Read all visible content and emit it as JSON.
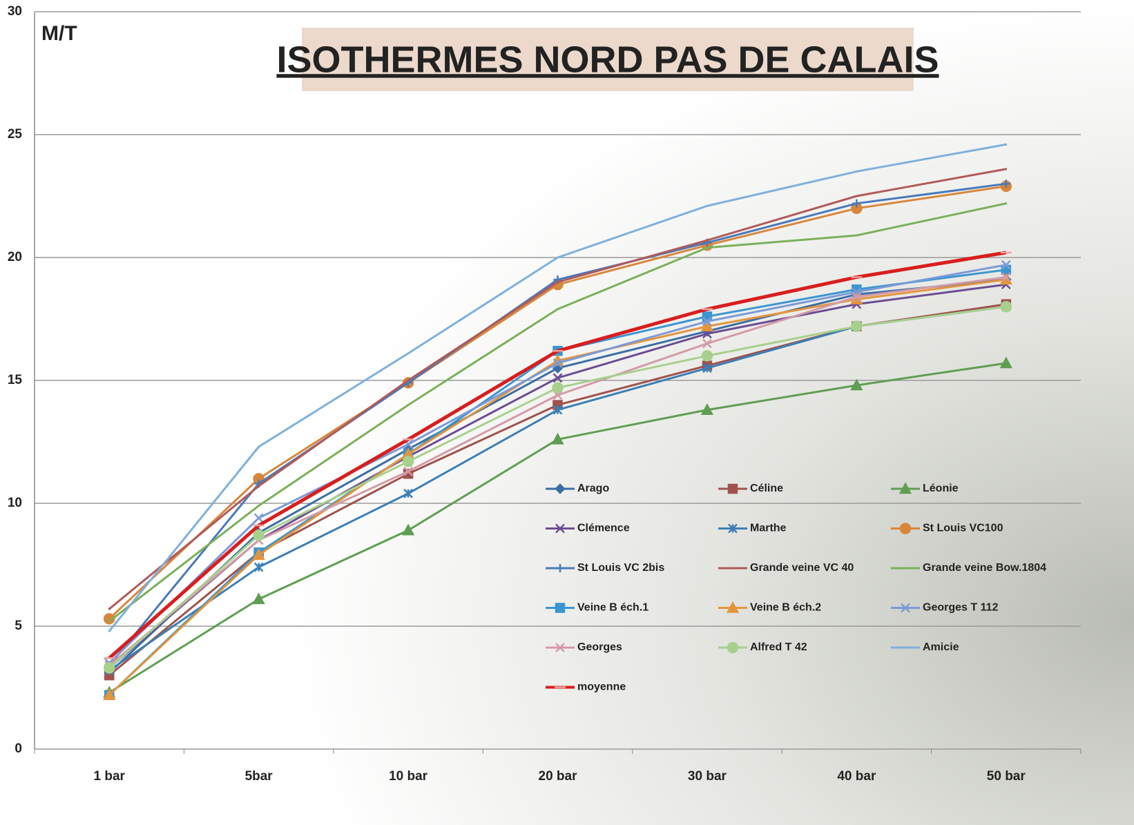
{
  "chart_data": {
    "type": "line",
    "title": "ISOTHERMES NORD PAS DE CALAIS",
    "y_label": "M/T",
    "categories": [
      "1 bar",
      "5bar",
      "10 bar",
      "20 bar",
      "30 bar",
      "40 bar",
      "50 bar"
    ],
    "ylim": [
      0,
      30
    ],
    "yticks": [
      0,
      5,
      10,
      15,
      20,
      25,
      30
    ],
    "grid": true,
    "series": [
      {
        "name": "Arago",
        "color": "#3a6ea5",
        "marker": "diamond",
        "values": [
          3.1,
          8.8,
          12.2,
          15.5,
          17.0,
          18.5,
          19.1
        ]
      },
      {
        "name": "Céline",
        "color": "#a0524d",
        "marker": "square",
        "values": [
          3.0,
          8.0,
          11.2,
          14.0,
          15.6,
          17.2,
          18.1
        ]
      },
      {
        "name": "Léonie",
        "color": "#5f9e52",
        "marker": "triangle",
        "values": [
          2.3,
          6.1,
          8.9,
          12.6,
          13.8,
          14.8,
          15.7
        ]
      },
      {
        "name": "Clémence",
        "color": "#6a4c93",
        "marker": "x",
        "values": [
          3.3,
          8.5,
          11.9,
          15.1,
          16.9,
          18.1,
          18.9
        ]
      },
      {
        "name": "Marthe",
        "color": "#3b7fb6",
        "marker": "star",
        "values": [
          3.2,
          7.4,
          10.4,
          13.8,
          15.5,
          17.2,
          18.0
        ]
      },
      {
        "name": "St Louis VC100",
        "color": "#d9863a",
        "marker": "circle",
        "values": [
          5.3,
          11.0,
          14.9,
          18.9,
          20.5,
          22.0,
          22.9
        ]
      },
      {
        "name": "St Louis VC 2bis",
        "color": "#4a79b9",
        "marker": "plus",
        "values": [
          3.4,
          10.8,
          14.9,
          19.1,
          20.6,
          22.2,
          23.0
        ]
      },
      {
        "name": "Grande veine VC 40",
        "color": "#b05a5a",
        "marker": "none",
        "values": [
          5.7,
          10.7,
          15.0,
          19.0,
          20.7,
          22.5,
          23.6
        ]
      },
      {
        "name": "Grande veine Bow.1804",
        "color": "#7ab05a",
        "marker": "none",
        "values": [
          5.2,
          9.9,
          14.0,
          17.9,
          20.4,
          20.9,
          22.2
        ]
      },
      {
        "name": "Veine B éch.1",
        "color": "#3a96d0",
        "marker": "square",
        "values": [
          2.2,
          8.0,
          12.0,
          16.2,
          17.6,
          18.7,
          19.5
        ]
      },
      {
        "name": "Veine B éch.2",
        "color": "#e3953c",
        "marker": "triangle",
        "values": [
          2.2,
          7.9,
          12.0,
          15.8,
          17.2,
          18.3,
          19.1
        ]
      },
      {
        "name": "Georges T 112",
        "color": "#7a9ad8",
        "marker": "x",
        "values": [
          3.5,
          9.4,
          12.4,
          15.7,
          17.4,
          18.6,
          19.7
        ]
      },
      {
        "name": "Georges",
        "color": "#d49aa8",
        "marker": "x",
        "values": [
          3.4,
          8.5,
          11.3,
          14.4,
          16.5,
          18.4,
          19.2
        ]
      },
      {
        "name": "Alfred T 42",
        "color": "#a8d08d",
        "marker": "circle",
        "values": [
          3.3,
          8.7,
          11.7,
          14.7,
          16.0,
          17.2,
          18.0
        ]
      },
      {
        "name": "Amicie",
        "color": "#7fb0dc",
        "marker": "none",
        "values": [
          4.8,
          12.3,
          16.1,
          20.0,
          22.1,
          23.5,
          24.6
        ]
      },
      {
        "name": "moyenne",
        "color": "#d81e1e",
        "marker": "dash",
        "values": [
          3.7,
          9.1,
          12.6,
          16.2,
          17.9,
          19.2,
          20.2
        ]
      }
    ]
  }
}
